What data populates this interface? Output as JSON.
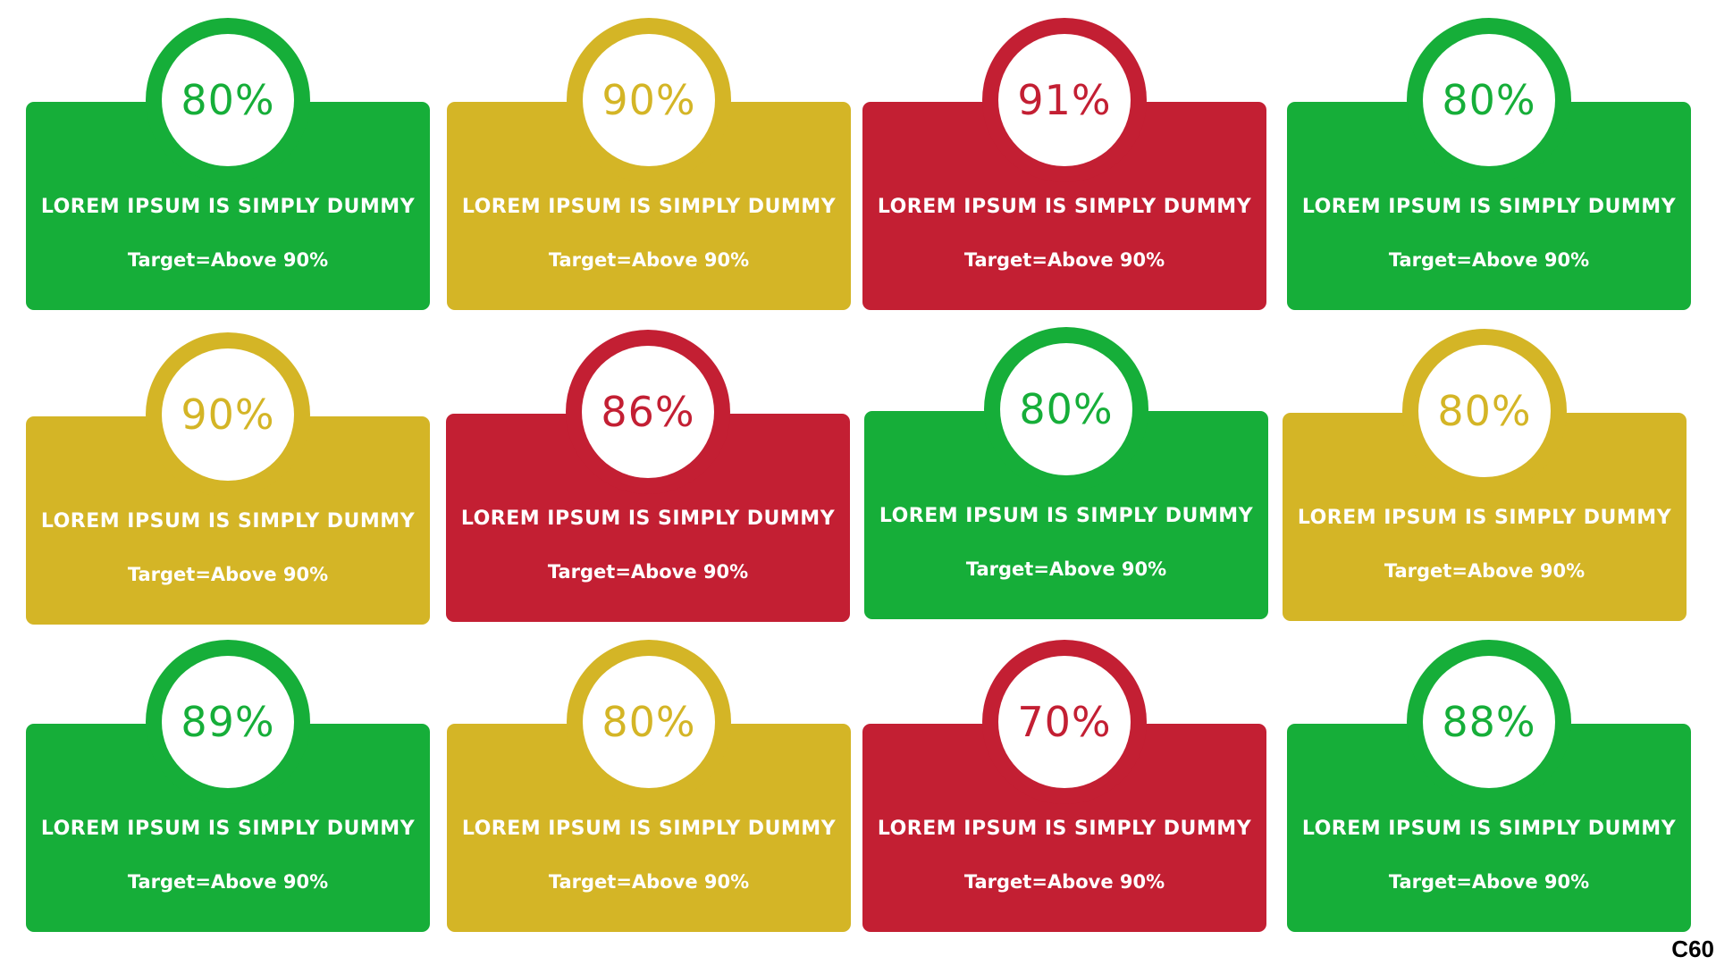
{
  "colors": {
    "green": "#16ae39",
    "yellow": "#d4b526",
    "red": "#c31f33"
  },
  "cards": [
    {
      "value": "80%",
      "status": "green",
      "title": "LOREM IPSUM IS SIMPLY DUMMY",
      "target": "Target=Above 90%"
    },
    {
      "value": "90%",
      "status": "yellow",
      "title": "LOREM IPSUM IS SIMPLY DUMMY",
      "target": "Target=Above 90%"
    },
    {
      "value": "91%",
      "status": "red",
      "title": "LOREM IPSUM IS SIMPLY DUMMY",
      "target": "Target=Above 90%"
    },
    {
      "value": "80%",
      "status": "green",
      "title": "LOREM IPSUM IS SIMPLY DUMMY",
      "target": "Target=Above 90%"
    },
    {
      "value": "90%",
      "status": "yellow",
      "title": "LOREM IPSUM IS SIMPLY DUMMY",
      "target": "Target=Above 90%"
    },
    {
      "value": "86%",
      "status": "red",
      "title": "LOREM IPSUM IS SIMPLY DUMMY",
      "target": "Target=Above 90%"
    },
    {
      "value": "80%",
      "status": "green",
      "title": "LOREM IPSUM IS SIMPLY DUMMY",
      "target": "Target=Above 90%"
    },
    {
      "value": "80%",
      "status": "yellow",
      "title": "LOREM IPSUM IS SIMPLY DUMMY",
      "target": "Target=Above 90%"
    },
    {
      "value": "89%",
      "status": "green",
      "title": "LOREM IPSUM IS SIMPLY DUMMY",
      "target": "Target=Above 90%"
    },
    {
      "value": "80%",
      "status": "yellow",
      "title": "LOREM IPSUM IS SIMPLY DUMMY",
      "target": "Target=Above 90%"
    },
    {
      "value": "70%",
      "status": "red",
      "title": "LOREM IPSUM IS SIMPLY DUMMY",
      "target": "Target=Above 90%"
    },
    {
      "value": "88%",
      "status": "green",
      "title": "LOREM IPSUM IS SIMPLY DUMMY",
      "target": "Target=Above 90%"
    }
  ],
  "corner_code": "C60"
}
